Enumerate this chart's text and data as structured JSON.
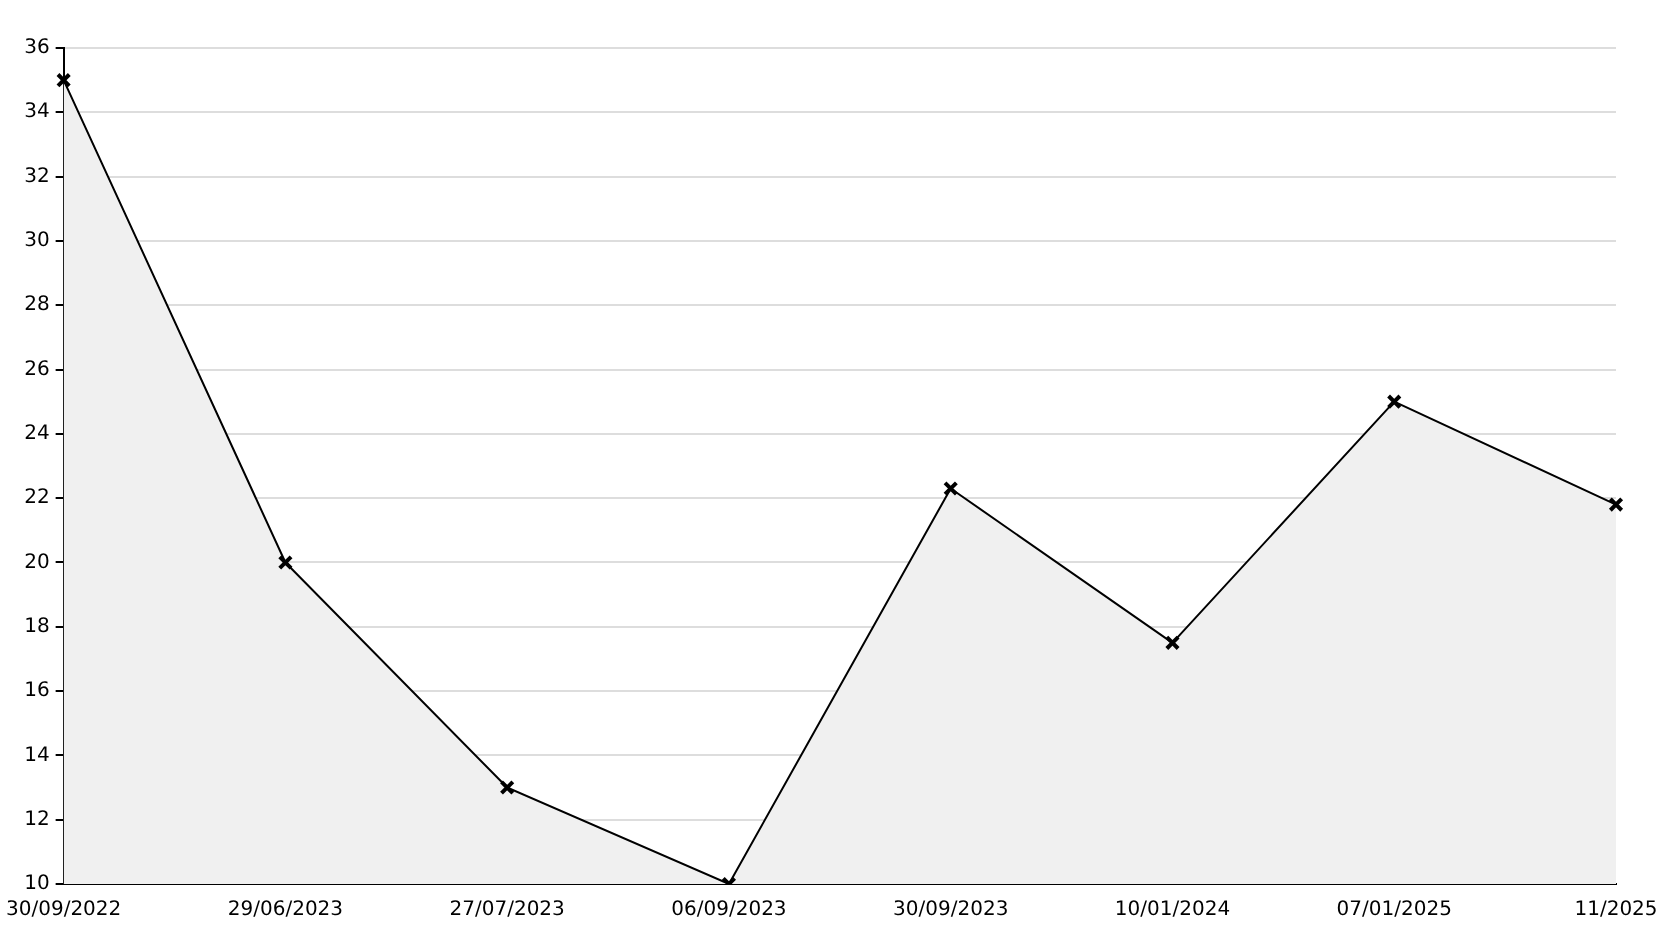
{
  "chart_data": {
    "type": "area",
    "categories": [
      "30/09/2022",
      "29/06/2023",
      "27/07/2023",
      "06/09/2023",
      "30/09/2023",
      "10/01/2024",
      "07/01/2025",
      "11/2025"
    ],
    "series": [
      {
        "color": "#000000",
        "values": [
          35,
          20,
          13,
          10,
          22.3,
          17.5,
          25,
          21.8
        ]
      }
    ],
    "ylim": [
      10,
      36
    ],
    "yticks": [
      10,
      12,
      14,
      16,
      18,
      20,
      22,
      24,
      26,
      28,
      30,
      32,
      34,
      36
    ],
    "grid": "y",
    "legend": false,
    "marker": "cross",
    "line_style": "solid"
  }
}
